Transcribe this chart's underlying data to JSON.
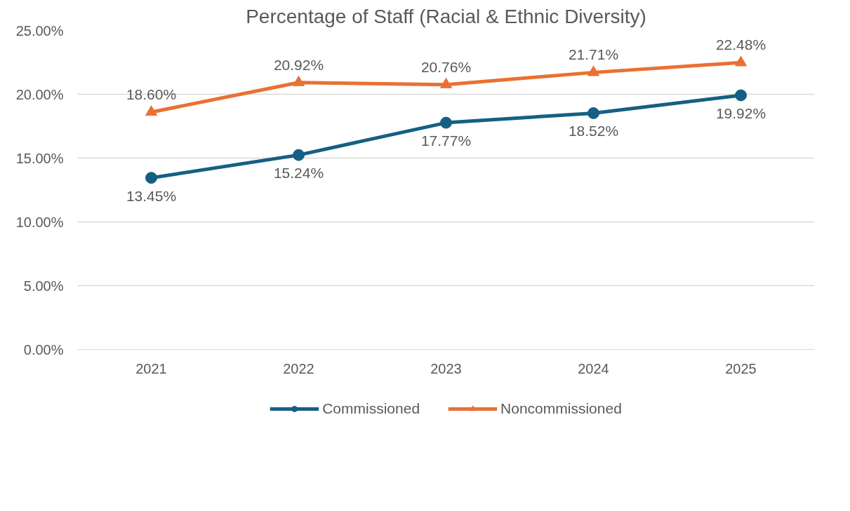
{
  "chart_data": {
    "type": "line",
    "title": "Percentage of Staff (Racial & Ethnic Diversity)",
    "categories": [
      "2021",
      "2022",
      "2023",
      "2024",
      "2025"
    ],
    "series": [
      {
        "name": "Commissioned",
        "color": "#156082",
        "marker": "circle",
        "values": [
          13.45,
          15.24,
          17.77,
          18.52,
          19.92
        ],
        "value_labels": [
          "13.45%",
          "15.24%",
          "17.77%",
          "18.52%",
          "19.92%"
        ]
      },
      {
        "name": "Noncommissioned",
        "color": "#e97132",
        "marker": "triangle",
        "values": [
          18.6,
          20.92,
          20.76,
          21.71,
          22.48
        ],
        "value_labels": [
          "18.60%",
          "20.92%",
          "20.76%",
          "21.71%",
          "22.48%"
        ]
      }
    ],
    "ylim": [
      0,
      25
    ],
    "yticks": [
      {
        "value": 0,
        "label": "0.00%"
      },
      {
        "value": 5,
        "label": "5.00%"
      },
      {
        "value": 10,
        "label": "10.00%"
      },
      {
        "value": 15,
        "label": "15.00%"
      },
      {
        "value": 20,
        "label": "20.00%"
      },
      {
        "value": 25,
        "label": "25.00%"
      }
    ],
    "grid": "y",
    "legend": "bottom",
    "line_style": "solid"
  }
}
